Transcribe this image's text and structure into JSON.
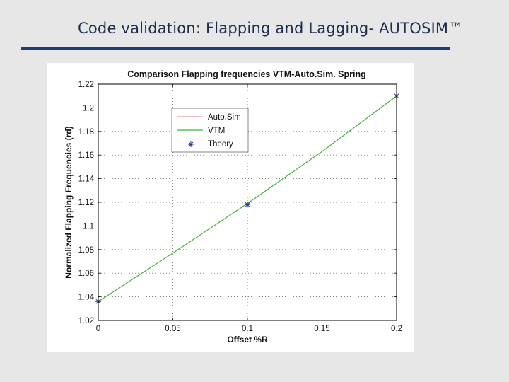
{
  "slide": {
    "title": "Code validation: Flapping and Lagging- AUTOSIM™"
  },
  "colors": {
    "rule": "#1c3e74",
    "autosim": "#d98080",
    "vtm": "#33bb33",
    "theory": "#2a2aa0"
  },
  "chart_data": {
    "type": "line",
    "title": "Comparison Flapping frequencies VTM-Auto.Sim. Spring",
    "xlabel": "Offset %R",
    "ylabel": "Normalized Flapping Frequencies (rd)",
    "xlim": [
      0,
      0.2
    ],
    "ylim": [
      1.02,
      1.22
    ],
    "xticks": [
      0,
      0.05,
      0.1,
      0.15,
      0.2
    ],
    "xtick_labels": [
      "0",
      "0.05",
      "0.1",
      "0.15",
      "0.2"
    ],
    "yticks": [
      1.02,
      1.04,
      1.06,
      1.08,
      1.1,
      1.12,
      1.14,
      1.16,
      1.18,
      1.2,
      1.22
    ],
    "ytick_labels": [
      "1.02",
      "1.04",
      "1.06",
      "1.08",
      "1.1",
      "1.12",
      "1.14",
      "1.16",
      "1.18",
      "1.2",
      "1.22"
    ],
    "grid": true,
    "legend_position": "top-left",
    "series": [
      {
        "name": "Auto.Sim",
        "style": "line",
        "x": [
          0,
          0.05,
          0.1,
          0.15,
          0.2
        ],
        "values": [
          1.036,
          1.077,
          1.119,
          1.163,
          1.21
        ]
      },
      {
        "name": "VTM",
        "style": "line",
        "x": [
          0,
          0.05,
          0.1,
          0.15,
          0.2
        ],
        "values": [
          1.036,
          1.077,
          1.119,
          1.163,
          1.21
        ]
      },
      {
        "name": "Theory",
        "style": "marker",
        "x": [
          0,
          0.1
        ],
        "values": [
          1.036,
          1.118
        ]
      }
    ],
    "extra_markers": [
      {
        "x": 0.2,
        "y": 1.21,
        "symbol": "x"
      }
    ]
  }
}
